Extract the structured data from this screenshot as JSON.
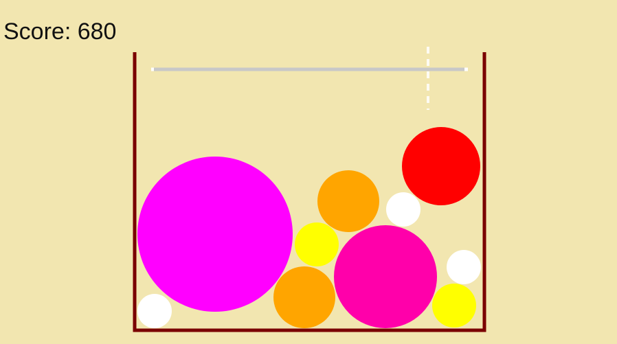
{
  "hud": {
    "score_text": "Score: 680"
  },
  "colors": {
    "background": "#f2e6b0",
    "container_wall": "#7a0000",
    "drop_line": "#c8c8c8",
    "drop_line_end": "#ffffff",
    "drop_guide": "#ffffff"
  },
  "balls": [
    {
      "name": "magenta-ball-large",
      "color": "#ff00ff",
      "tier": "magenta"
    },
    {
      "name": "white-ball",
      "color": "#ffffff",
      "tier": "white"
    },
    {
      "name": "yellow-ball",
      "color": "#ffff00",
      "tier": "yellow"
    },
    {
      "name": "orange-ball",
      "color": "#ffa500",
      "tier": "orange"
    },
    {
      "name": "orange-ball",
      "color": "#ffa500",
      "tier": "orange"
    },
    {
      "name": "white-ball",
      "color": "#ffffff",
      "tier": "white"
    },
    {
      "name": "red-ball",
      "color": "#ff0000",
      "tier": "red"
    },
    {
      "name": "pink-ball",
      "color": "#ff00aa",
      "tier": "pink"
    },
    {
      "name": "white-ball",
      "color": "#ffffff",
      "tier": "white"
    },
    {
      "name": "yellow-ball",
      "color": "#ffff00",
      "tier": "yellow"
    }
  ]
}
